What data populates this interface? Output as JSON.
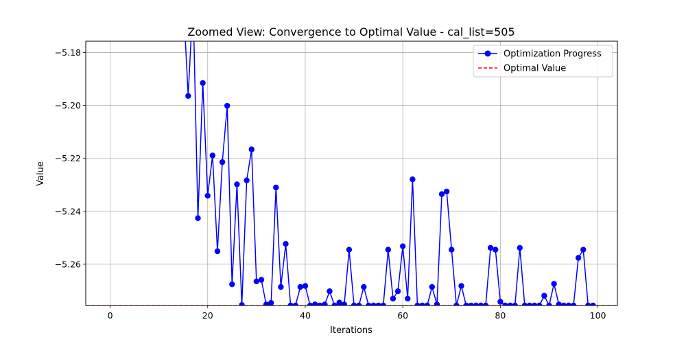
{
  "chart_data": {
    "type": "line",
    "title": "Zoomed View: Convergence to Optimal Value - cal_list=505",
    "xlabel": "Iterations",
    "ylabel": "Value",
    "xlim": [
      -5,
      104
    ],
    "ylim": [
      -5.2756,
      -5.1757
    ],
    "xticks": [
      0,
      20,
      40,
      60,
      80,
      100
    ],
    "yticks": [
      -5.18,
      -5.2,
      -5.22,
      -5.24,
      -5.26
    ],
    "ytick_labels": [
      "−5.18",
      "−5.20",
      "−5.22",
      "−5.24",
      "−5.26"
    ],
    "grid": true,
    "legend_position": "upper right",
    "optimal_value": -5.2756,
    "series": [
      {
        "name": "Optimization Progress",
        "color": "#0000ff",
        "marker": "circle",
        "x": [
          15,
          16,
          17,
          18,
          19,
          20,
          21,
          22,
          23,
          24,
          25,
          26,
          27,
          28,
          29,
          30,
          31,
          32,
          33,
          34,
          35,
          36,
          37,
          38,
          39,
          40,
          41,
          42,
          43,
          44,
          45,
          46,
          47,
          48,
          49,
          50,
          51,
          52,
          53,
          54,
          55,
          56,
          57,
          58,
          59,
          60,
          61,
          62,
          63,
          64,
          65,
          66,
          67,
          68,
          69,
          70,
          71,
          72,
          73,
          74,
          75,
          76,
          77,
          78,
          79,
          80,
          81,
          82,
          83,
          84,
          85,
          86,
          87,
          88,
          89,
          90,
          91,
          92,
          93,
          94,
          95,
          96,
          97,
          98,
          99
        ],
        "y": [
          -5.16,
          -5.1964,
          -5.16,
          -5.2426,
          -5.1915,
          -5.2341,
          -5.2189,
          -5.2551,
          -5.2214,
          -5.2001,
          -5.2676,
          -5.2298,
          -5.2754,
          -5.2283,
          -5.2166,
          -5.2665,
          -5.2659,
          -5.2752,
          -5.2746,
          -5.231,
          -5.2686,
          -5.2523,
          -5.2756,
          -5.2756,
          -5.2686,
          -5.2682,
          -5.2756,
          -5.2752,
          -5.2756,
          -5.2752,
          -5.2702,
          -5.2756,
          -5.2745,
          -5.2752,
          -5.2545,
          -5.2756,
          -5.2756,
          -5.2686,
          -5.2756,
          -5.2756,
          -5.2756,
          -5.2756,
          -5.2545,
          -5.273,
          -5.2702,
          -5.2532,
          -5.273,
          -5.2279,
          -5.2756,
          -5.2756,
          -5.2756,
          -5.2686,
          -5.2752,
          -5.2335,
          -5.2325,
          -5.2545,
          -5.2756,
          -5.2682,
          -5.2756,
          -5.2756,
          -5.2756,
          -5.2756,
          -5.2756,
          -5.2538,
          -5.2545,
          -5.2742,
          -5.2756,
          -5.2756,
          -5.2756,
          -5.2538,
          -5.2756,
          -5.2756,
          -5.2756,
          -5.2756,
          -5.2719,
          -5.2756,
          -5.2674,
          -5.2752,
          -5.2756,
          -5.2756,
          -5.2756,
          -5.2576,
          -5.2545,
          -5.2756,
          -5.2756
        ]
      },
      {
        "name": "Optimal Value",
        "color": "#ff0000",
        "style": "dashed"
      }
    ]
  }
}
